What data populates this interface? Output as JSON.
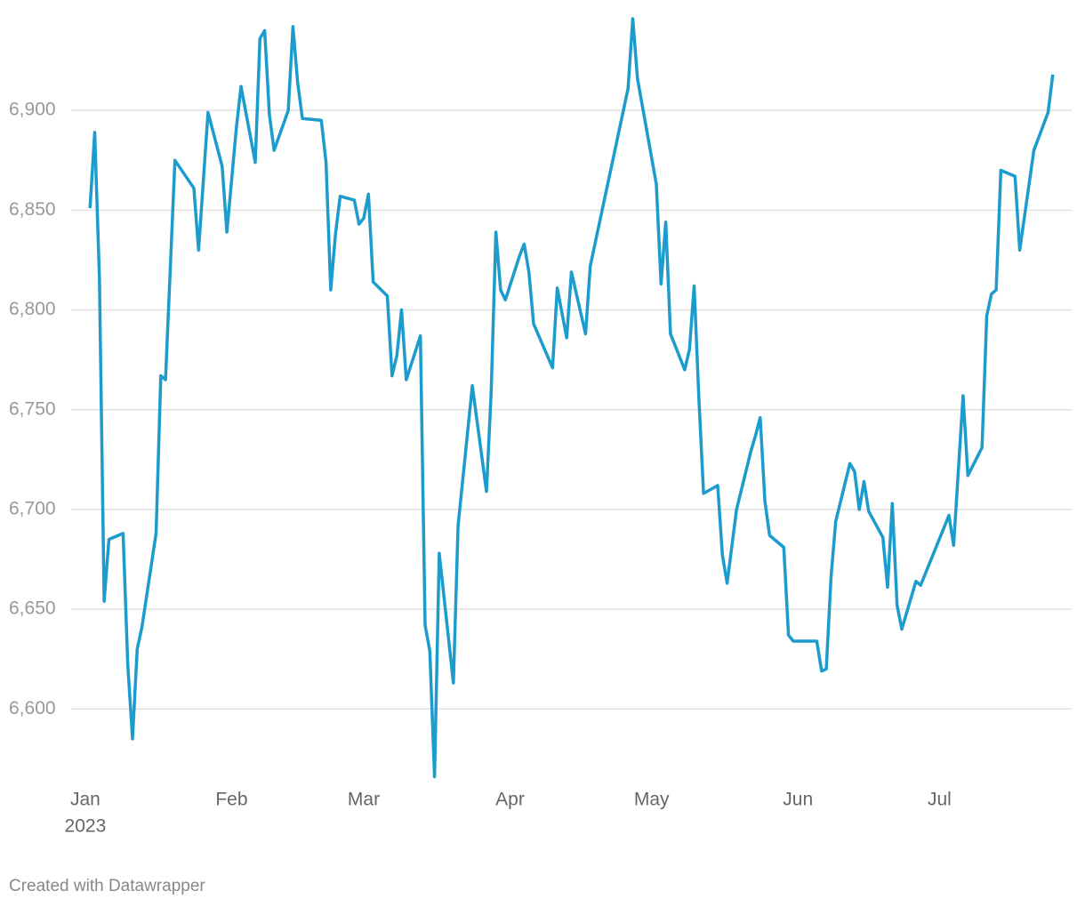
{
  "chart_data": {
    "type": "line",
    "x": [
      1,
      2,
      3,
      4,
      5,
      8,
      9,
      10,
      11,
      12,
      15,
      16,
      17,
      19,
      23,
      24,
      26,
      29,
      30,
      32,
      33,
      36,
      37,
      38,
      39,
      40,
      43,
      44,
      45,
      46,
      50,
      51,
      52,
      53,
      54,
      57,
      58,
      59,
      60,
      61,
      64,
      65,
      66,
      67,
      68,
      71,
      72,
      73,
      74,
      75,
      78,
      79,
      82,
      85,
      86,
      87,
      88,
      89,
      92,
      93,
      94,
      95,
      99,
      100,
      102,
      103,
      106,
      107,
      115,
      116,
      117,
      121,
      122,
      123,
      124,
      127,
      128,
      129,
      130,
      131,
      134,
      135,
      136,
      138,
      141,
      142,
      143,
      144,
      145,
      148,
      149,
      150,
      155,
      156,
      157,
      158,
      159,
      162,
      163,
      164,
      165,
      166,
      169,
      170,
      171,
      172,
      173,
      176,
      177,
      183,
      184,
      186,
      187,
      190,
      191,
      192,
      193,
      194,
      197,
      198,
      201,
      204,
      205
    ],
    "series": [
      {
        "color": "#1b9ccd",
        "values": [
          6851,
          6889,
          6816,
          6654,
          6685,
          6688,
          6622,
          6585,
          6630,
          6641,
          6688,
          6767,
          6765,
          6875,
          6861,
          6830,
          6899,
          6872,
          6839,
          6891,
          6912,
          6874,
          6936,
          6940,
          6898,
          6880,
          6900,
          6942,
          6914,
          6896,
          6895,
          6874,
          6810,
          6838,
          6857,
          6855,
          6843,
          6846,
          6858,
          6814,
          6807,
          6767,
          6777,
          6800,
          6765,
          6787,
          6642,
          6629,
          6566,
          6678,
          6613,
          6692,
          6762,
          6709,
          6759,
          6839,
          6810,
          6805,
          6827,
          6833,
          6819,
          6793,
          6771,
          6811,
          6786,
          6819,
          6788,
          6822,
          6911,
          6946,
          6916,
          6863,
          6813,
          6844,
          6788,
          6770,
          6780,
          6812,
          6756,
          6708,
          6712,
          6677,
          6663,
          6700,
          6729,
          6737,
          6746,
          6704,
          6687,
          6681,
          6637,
          6634,
          6634,
          6619,
          6620,
          6666,
          6694,
          6723,
          6719,
          6700,
          6714,
          6699,
          6686,
          6661,
          6703,
          6652,
          6640,
          6664,
          6662,
          6697,
          6682,
          6757,
          6717,
          6731,
          6797,
          6808,
          6810,
          6870,
          6867,
          6830,
          6880,
          6899,
          6918
        ]
      }
    ],
    "xlim": [
      -3,
      209
    ],
    "xticks": [
      {
        "value": 0,
        "label": "Jan"
      },
      {
        "value": 31,
        "label": "Feb"
      },
      {
        "value": 59,
        "label": "Mar"
      },
      {
        "value": 90,
        "label": "Apr"
      },
      {
        "value": 120,
        "label": "May"
      },
      {
        "value": 151,
        "label": "Jun"
      },
      {
        "value": 181,
        "label": "Jul"
      }
    ],
    "x_year_label": "2023",
    "ylim": [
      6560,
      6950
    ],
    "yticks": [
      {
        "value": 6600,
        "label": "6,600"
      },
      {
        "value": 6650,
        "label": "6,650"
      },
      {
        "value": 6700,
        "label": "6,700"
      },
      {
        "value": 6750,
        "label": "6,750"
      },
      {
        "value": 6800,
        "label": "6,800"
      },
      {
        "value": 6850,
        "label": "6,850"
      },
      {
        "value": 6900,
        "label": "6,900"
      }
    ],
    "grid": true,
    "credit": "Created with Datawrapper"
  }
}
